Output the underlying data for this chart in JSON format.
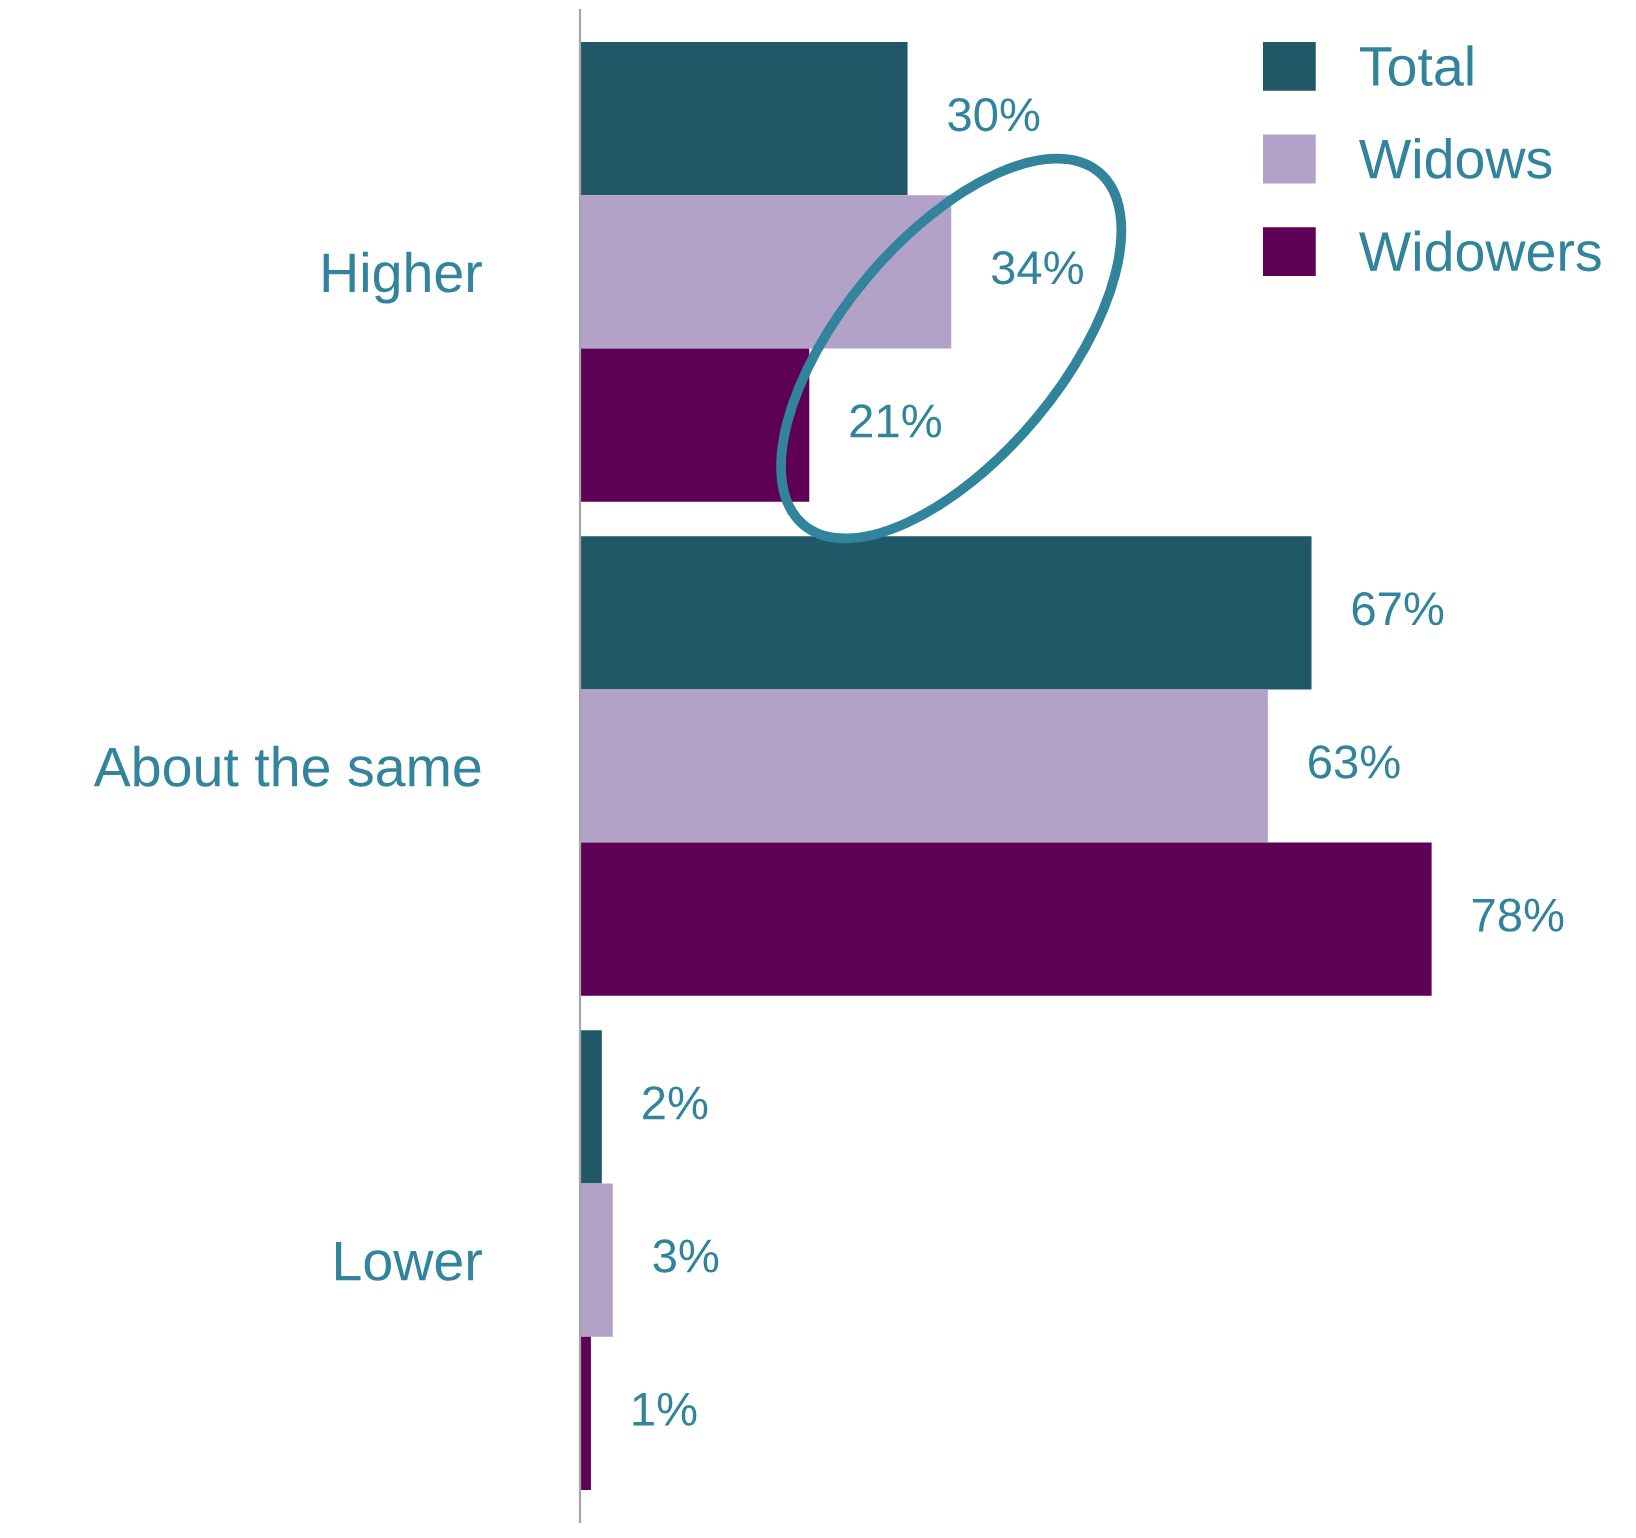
{
  "chart_data": {
    "type": "bar",
    "orientation": "horizontal",
    "categories": [
      "Higher",
      "About the same",
      "Lower"
    ],
    "series": [
      {
        "name": "Total",
        "color": "#215868",
        "values": [
          30,
          67,
          2
        ],
        "value_labels": [
          "30%",
          "67%",
          "2%"
        ]
      },
      {
        "name": "Widows",
        "color": "#b3a2c7",
        "values": [
          34,
          63,
          3
        ],
        "value_labels": [
          "34%",
          "63%",
          "3%"
        ]
      },
      {
        "name": "Widowers",
        "color": "#5f0057",
        "values": [
          21,
          78,
          1
        ],
        "value_labels": [
          "21%",
          "78%",
          "1%"
        ]
      }
    ],
    "tick_labels": "y",
    "grid": false,
    "legend": "top right"
  }
}
